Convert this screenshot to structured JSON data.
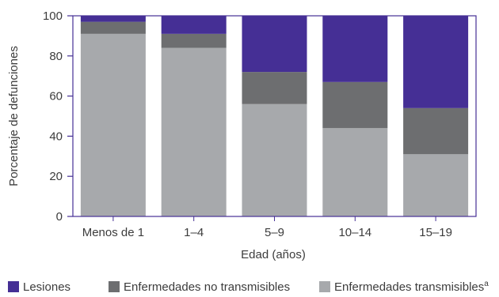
{
  "chart_data": {
    "type": "bar",
    "stacked": true,
    "categories": [
      "Menos de 1",
      "1–4",
      "5–9",
      "10–14",
      "15–19"
    ],
    "series": [
      {
        "name": "Enfermedades transmisibles",
        "superscript": "a",
        "color": "#a7a9ac",
        "values": [
          91,
          84,
          56,
          44,
          31
        ]
      },
      {
        "name": "Enfermedades no transmisibles",
        "color": "#6d6e70",
        "values": [
          6,
          7,
          16,
          23,
          23
        ]
      },
      {
        "name": "Lesiones",
        "color": "#452f95",
        "values": [
          3,
          9,
          28,
          33,
          46
        ]
      }
    ],
    "legend_order": [
      2,
      1,
      0
    ],
    "xlabel": "Edad (años)",
    "ylabel": "Porcentaje de defunciones",
    "ylim": [
      0,
      100
    ],
    "yticks": [
      0,
      20,
      40,
      60,
      80,
      100
    ],
    "grid": false,
    "legend_position": "bottom",
    "frame_color": "#452f95"
  }
}
